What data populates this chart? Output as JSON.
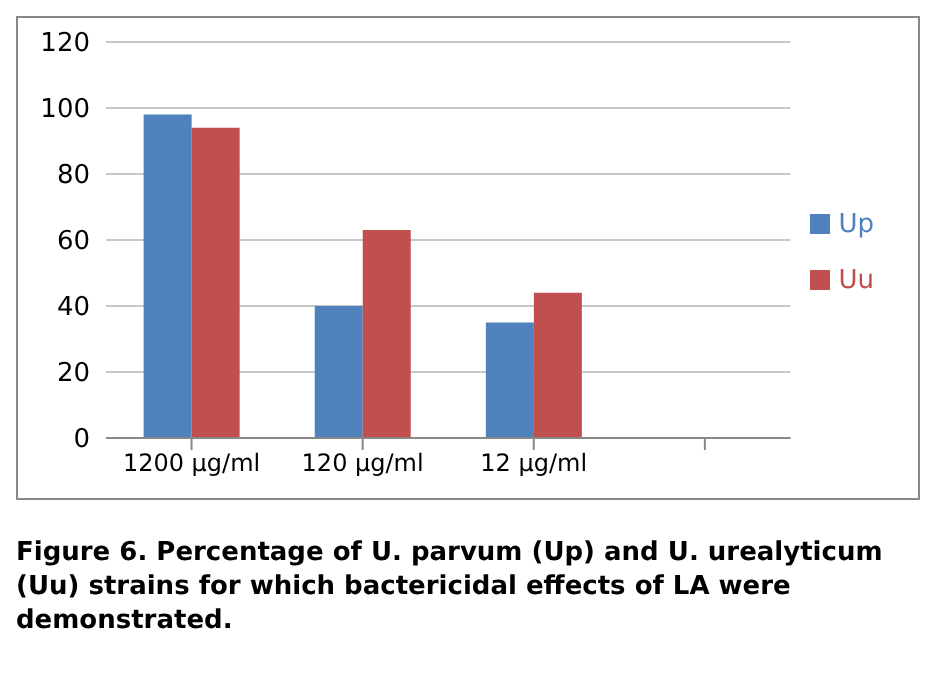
{
  "chart_data": {
    "type": "bar",
    "categories": [
      "1200 µg/ml",
      "120 µg/ml",
      "12 µg/ml",
      null
    ],
    "series": [
      {
        "name": "Up",
        "color": "#4f81bd",
        "values": [
          98,
          40,
          35,
          null
        ]
      },
      {
        "name": "Uu",
        "color": "#c0504d",
        "values": [
          94,
          63,
          44,
          null
        ]
      }
    ],
    "ylim": [
      0,
      120
    ],
    "yticks": [
      0,
      20,
      40,
      60,
      80,
      100,
      120
    ],
    "grid": "y",
    "legend": "right",
    "annotations": [
      "Figure 6. Percentage of U. parvum (Up) and U. urealyticum (Uu) strains for which bactericidal effects of LA were demonstrated."
    ]
  }
}
